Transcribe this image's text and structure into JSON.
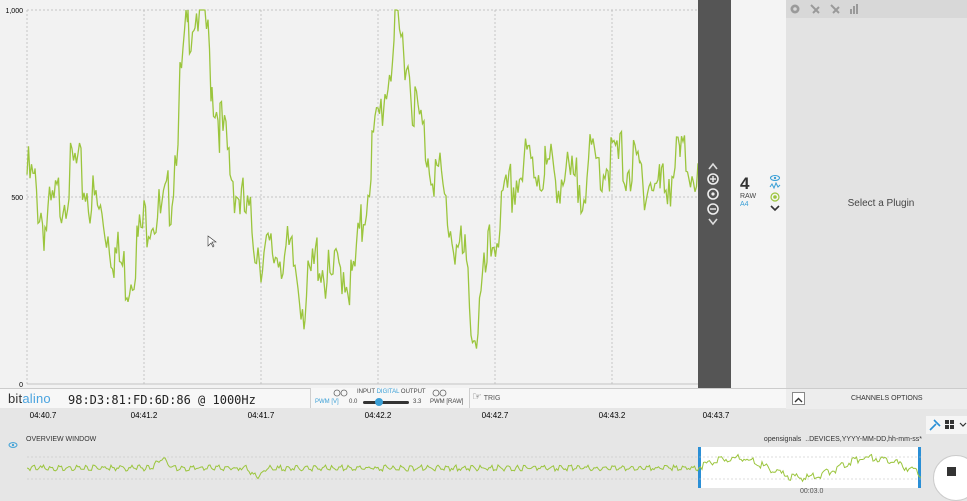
{
  "chart_data": {
    "type": "line",
    "y_ticks": [
      "1,000",
      "500",
      "0"
    ],
    "ylim": [
      0,
      1000
    ],
    "x_ticks": [
      "04:40.7",
      "04:41.2",
      "04:41.7",
      "04:42.2",
      "04:42.7",
      "04:43.2",
      "04:43.7"
    ],
    "grid": true,
    "series_color": "#9bc53d"
  },
  "channel": {
    "number": "4",
    "mode": "RAW",
    "name": "A4"
  },
  "plugin_panel": {
    "placeholder": "Select a Plugin"
  },
  "status": {
    "logo_prefix": "bit",
    "logo_accent": "alino",
    "device": "98:D3:81:FD:6D:86 @ 1000Hz"
  },
  "io": {
    "title_input": "INPUT",
    "title_digital": "DIGITAL",
    "title_output": "OUTPUT",
    "pwm_v": "PWM [V]",
    "slider_min": "0.0",
    "slider_max": "3.3",
    "pwm_raw": "PWM [RAW]",
    "slider_level": 0.35
  },
  "trig": {
    "label": "TRIG"
  },
  "channels_options": {
    "label": "CHANNELS OPTIONS"
  },
  "overview": {
    "title": "OVERVIEW WINDOW",
    "source_app": "opensignals",
    "source_file": "..DEVICES,YYYY-MM-DD,hh-mm-ss*",
    "time": "00:03.0"
  },
  "colors": {
    "signal": "#9bc53d",
    "accent": "#3a9fd6",
    "strip": "#555555"
  },
  "icons": {
    "zoom": [
      "chevron-up-icon",
      "zoom-fit-icon",
      "zoom-in-icon",
      "zoom-out-icon",
      "chevron-down-icon"
    ],
    "channel": [
      "eye-icon",
      "waveform-icon",
      "target-icon",
      "chevron-down-icon"
    ],
    "plugin_toolbar": [
      "gear-icon",
      "plugin-icon",
      "plugin-off-icon",
      "chart-icon"
    ]
  }
}
